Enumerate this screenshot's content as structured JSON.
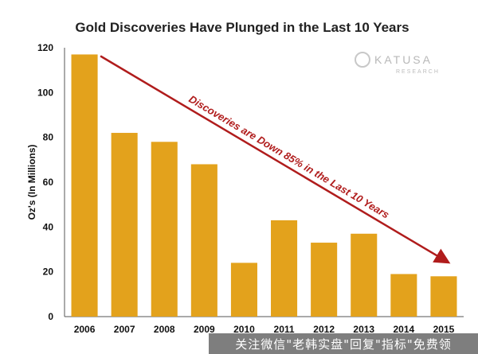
{
  "chart_data": {
    "type": "bar",
    "title": "Gold Discoveries Have Plunged in the Last 10 Years",
    "xlabel": "",
    "ylabel": "Oz's (In Millions)",
    "categories": [
      "2006",
      "2007",
      "2008",
      "2009",
      "2010",
      "2011",
      "2012",
      "2013",
      "2014",
      "2015"
    ],
    "values": [
      117,
      82,
      78,
      68,
      24,
      43,
      33,
      37,
      19,
      18
    ],
    "ylim": [
      0,
      120
    ],
    "yticks": [
      0,
      20,
      40,
      60,
      80,
      100,
      120
    ],
    "grid": false,
    "legend": "none",
    "bar_color": "#e3a21c",
    "annotation": {
      "text": "Discoveries are Down 85% in the Last 10 Years",
      "color": "#b01c1c",
      "arrow_from": {
        "category": "2006",
        "value": 117
      },
      "arrow_to": {
        "category": "2015",
        "value": 25
      }
    }
  },
  "brand": {
    "name": "KATUSA",
    "subtitle": "RESEARCH"
  },
  "watermark": {
    "text": "关注微信\"老韩实盘\"回复\"指标\"免费领"
  }
}
